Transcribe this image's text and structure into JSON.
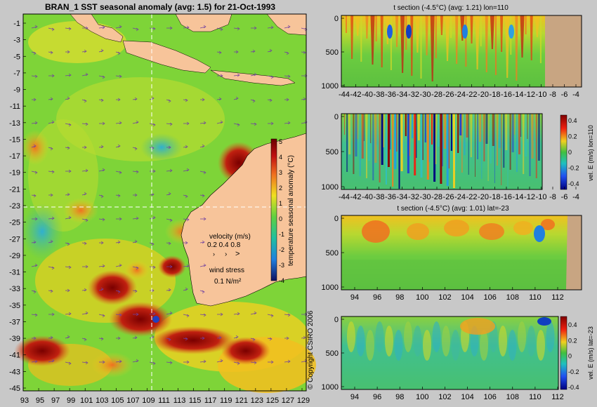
{
  "map": {
    "title": "BRAN_1  SST seasonal anomaly  (avg: 1.5) for 21-Oct-1993",
    "lat_labels": [
      "-1",
      "-3",
      "-5",
      "-7",
      "-9",
      "-11",
      "-13",
      "-15",
      "-17",
      "-19",
      "-21",
      "-23",
      "-25",
      "-27",
      "-29",
      "-31",
      "-33",
      "-35",
      "-37",
      "-39",
      "-41",
      "-43",
      "-45"
    ],
    "lon_labels": [
      "93",
      "95",
      "97",
      "99",
      "101",
      "103",
      "105",
      "107",
      "109",
      "111",
      "113",
      "115",
      "117",
      "119",
      "121",
      "123",
      "125",
      "127",
      "129"
    ],
    "colorbar_ticks": [
      "5",
      "4",
      "3",
      "2",
      "1",
      "0",
      "-1",
      "-2",
      "-3",
      "-4"
    ],
    "colorbar_label": "temperature seasonal anomaly (°C)",
    "velocity_label": "velocity (m/s)",
    "velocity_scale": "0.2 0.4 0.8",
    "wind_label": "wind stress",
    "wind_scale": "0.1 N/m²",
    "copyright": "© Copyright CSIRO 2006"
  },
  "panel1": {
    "title": "t section (-4.5°C) (avg: 1.21) lon=110",
    "x_labels": [
      "-44",
      "-42",
      "-40",
      "-38",
      "-36",
      "-34",
      "-32",
      "-30",
      "-28",
      "-26",
      "-24",
      "-22",
      "-20",
      "-18",
      "-16",
      "-14",
      "-12",
      "-10",
      "-8",
      "-6",
      "-4"
    ],
    "y_labels": [
      "0",
      "500",
      "1000"
    ]
  },
  "panel2": {
    "x_labels": [
      "-44",
      "-42",
      "-40",
      "-38",
      "-36",
      "-34",
      "-32",
      "-30",
      "-28",
      "-26",
      "-24",
      "-22",
      "-20",
      "-18",
      "-16",
      "-14",
      "-12",
      "-10",
      "-8",
      "-6",
      "-4"
    ],
    "y_labels": [
      "0",
      "500",
      "1000"
    ],
    "cbar_ticks": [
      "0.4",
      "0.2",
      "0",
      "-0.2",
      "-0.4"
    ],
    "cbar_label": "vel. E (m/s) lon=110"
  },
  "panel3": {
    "title": "t section (-4.5°C) (avg: 1.01) lat=-23",
    "x_labels": [
      "94",
      "96",
      "98",
      "100",
      "102",
      "104",
      "106",
      "108",
      "110",
      "112"
    ],
    "y_labels": [
      "0",
      "500",
      "1000"
    ]
  },
  "panel4": {
    "x_labels": [
      "94",
      "96",
      "98",
      "100",
      "102",
      "104",
      "106",
      "108",
      "110",
      "112"
    ],
    "y_labels": [
      "0",
      "500",
      "1000"
    ],
    "cbar_ticks": [
      "0.4",
      "0.2",
      "0",
      "-0.2",
      "-0.4"
    ],
    "cbar_label": "vel. E (m/s) lat=-23"
  },
  "colors": {
    "background": "#c8c8c8",
    "land": "#f7c49a",
    "land_section": "#c8a582",
    "ocean_warm": "#f0d020",
    "ocean_neutral": "#6fd03a",
    "ocean_hot": "#a01010",
    "cold": "#1030a0"
  }
}
